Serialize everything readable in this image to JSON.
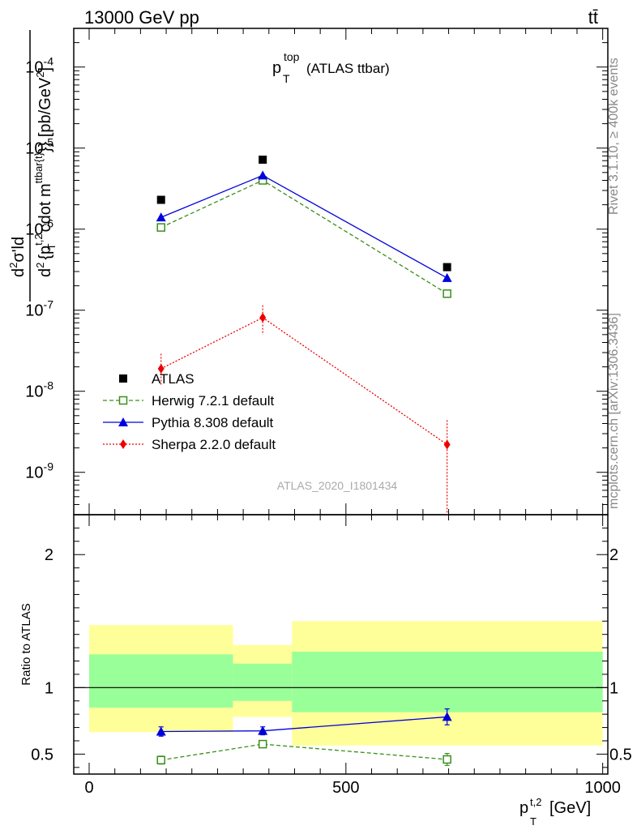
{
  "header": {
    "left": "13000 GeV pp",
    "right": "tt̄",
    "side_top": "Rivet 3.1.10, ≥ 400k events",
    "side_bottom": "mcplots.cern.ch [arXiv:1306.3436]"
  },
  "main": {
    "title_main": "p",
    "title_sup": "top",
    "title_sub": "T",
    "title_rest": "(ATLAS ttbar)",
    "watermark": "ATLAS_2020_I1801434",
    "ylabel_parts": {
      "a": "d",
      "a_sup": "2",
      "b": "σ'ld",
      "c": "d",
      "c_sup": "2",
      "d": "{p",
      "d_sup": "t,2",
      "d_sub": "T",
      "e": "cdot m",
      "e_sup": "ttbar{t}",
      "f": "}} [pb/GeV",
      "f_sup": "2",
      "g": "]"
    }
  },
  "ratio": {
    "ylabel": "Ratio to ATLAS"
  },
  "xaxis": {
    "label_main": "p",
    "label_sup": "t,2",
    "label_sub": "T",
    "label_unit": "[GeV]"
  },
  "colors": {
    "atlas": "#000000",
    "herwig": "#3a8f1a",
    "pythia": "#0000dd",
    "sherpa": "#ee0000",
    "band_inner": "#99ff99",
    "band_outer": "#ffff99"
  },
  "chart_data": [
    {
      "type": "scatter",
      "title": "p_T^top (ATLAS ttbar)",
      "xlabel": "p_T^{t,2} [GeV]",
      "ylabel": "d²σ'ld d²{p_T^{t,2} cdot m^{ttbar{t}}}} [pb/GeV²]",
      "xlim": [
        -30,
        1010
      ],
      "ylim": [
        3e-10,
        0.0003
      ],
      "yscale": "log",
      "xticks": [
        0,
        500,
        1000
      ],
      "yticks": [
        {
          "v": 1e-09,
          "b": "10",
          "e": "-9"
        },
        {
          "v": 1e-08,
          "b": "10",
          "e": "-8"
        },
        {
          "v": 1e-07,
          "b": "10",
          "e": "-7"
        },
        {
          "v": 1e-06,
          "b": "10",
          "e": "-6"
        },
        {
          "v": 1e-05,
          "b": "10",
          "e": "-5"
        },
        {
          "v": 0.0001,
          "b": "10",
          "e": "-4"
        }
      ],
      "legend_position": "lower-left",
      "series": [
        {
          "name": "ATLAS",
          "style": "data",
          "x": [
            140,
            338,
            697
          ],
          "y": [
            2.3e-06,
            7.2e-06,
            3.4e-07
          ]
        },
        {
          "name": "Herwig 7.2.1 default",
          "style": "herwig",
          "x": [
            140,
            338,
            697
          ],
          "y": [
            1.05e-06,
            4e-06,
            1.6e-07
          ]
        },
        {
          "name": "Pythia 8.308 default",
          "style": "pythia",
          "x": [
            140,
            338,
            697
          ],
          "y": [
            1.4e-06,
            4.6e-06,
            2.5e-07
          ]
        },
        {
          "name": "Sherpa 2.2.0 default",
          "style": "sherpa",
          "x": [
            140,
            338,
            697
          ],
          "y": [
            1.9e-08,
            8.1e-08,
            2.2e-09
          ],
          "err_lo": [
            1.2e-08,
            5e-08,
            2e-10
          ],
          "err_hi": [
            2.9e-08,
            1.15e-07,
            4.4e-09
          ]
        }
      ]
    },
    {
      "type": "line",
      "ylabel": "Ratio to ATLAS",
      "xlim": [
        -30,
        1010
      ],
      "ylim": [
        0.35,
        2.3
      ],
      "xticks": [
        0,
        500,
        1000
      ],
      "yticks": [
        0.5,
        1,
        2
      ],
      "bands": [
        {
          "x0": 0,
          "x1": 280,
          "outer": [
            0.665,
            1.47
          ],
          "inner": [
            0.85,
            1.25
          ]
        },
        {
          "x0": 280,
          "x1": 395,
          "outer": [
            0.78,
            1.32
          ],
          "inner": [
            0.9,
            1.18
          ]
        },
        {
          "x0": 395,
          "x1": 1000,
          "outer": [
            0.565,
            1.5
          ],
          "inner": [
            0.815,
            1.27
          ]
        }
      ],
      "series": [
        {
          "name": "Herwig 7.2.1 default",
          "style": "herwig",
          "x": [
            140,
            338,
            697
          ],
          "y": [
            0.455,
            0.575,
            0.46
          ],
          "err": [
            0.03,
            0.015,
            0.045
          ]
        },
        {
          "name": "Pythia 8.308 default",
          "style": "pythia",
          "x": [
            140,
            338,
            697
          ],
          "y": [
            0.67,
            0.675,
            0.78
          ],
          "err": [
            0.035,
            0.03,
            0.06
          ]
        }
      ]
    }
  ]
}
